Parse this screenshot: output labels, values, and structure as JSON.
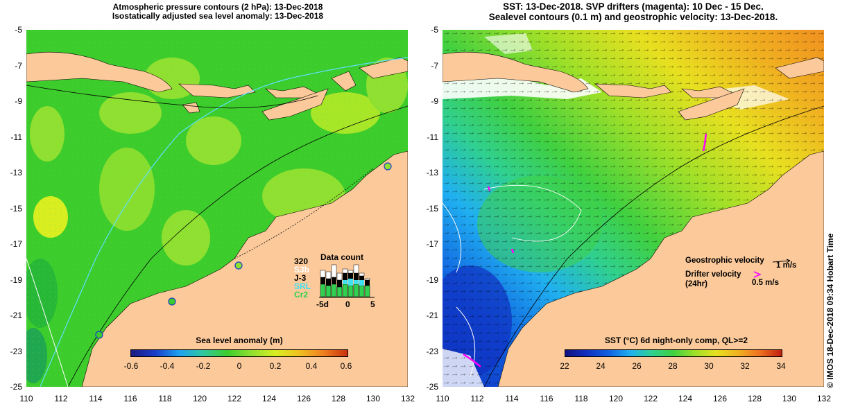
{
  "left_panel": {
    "title_line1": "Atmospheric pressure contours (2 hPa): 13-Dec-2018",
    "title_line2": "Isostatically adjusted sea level anomaly: 13-Dec-2018",
    "colorbar_title": "Sea level anomaly (m)",
    "colorbar_ticks": [
      "-0.6",
      "-0.4",
      "-0.2",
      "0",
      "0.2",
      "0.4",
      "0.6"
    ],
    "data_count": {
      "title": "Data count",
      "max_label": "320",
      "sat_labels": [
        "S3b",
        "J-3",
        "SRL",
        "Cr2"
      ],
      "sat_colors": [
        "#ffffff",
        "#000000",
        "#40e0f0",
        "#30d050"
      ],
      "x_ticks": [
        "-5d",
        "0",
        "5"
      ]
    }
  },
  "right_panel": {
    "title_line1": "SST: 13-Dec-2018. SVP drifters (magenta): 10 Dec - 15 Dec.",
    "title_line2": "Sealevel contours (0.1 m) and geostrophic velocity: 13-Dec-2018.",
    "colorbar_title": "SST (°C) 6d night-only comp, QL>=2",
    "colorbar_ticks": [
      "22",
      "24",
      "26",
      "28",
      "30",
      "32",
      "34"
    ],
    "legend": {
      "geo_label": "Geostrophic velocity",
      "geo_unit": "1 m/s",
      "drifter_label": "Drifter velocity",
      "drifter_sub": "(24hr)",
      "drifter_unit": "0.5 m/s"
    }
  },
  "axes": {
    "y_ticks": [
      "-5",
      "-7",
      "-9",
      "-11",
      "-13",
      "-15",
      "-17",
      "-19",
      "-21",
      "-23",
      "-25"
    ],
    "x_ticks_left": [
      "110",
      "112",
      "114",
      "116",
      "118",
      "120",
      "122",
      "124",
      "126",
      "128",
      "130",
      "132"
    ],
    "x_ticks_right": [
      "110",
      "112",
      "114",
      "116",
      "118",
      "120",
      "122",
      "124",
      "126",
      "128",
      "130",
      "132"
    ]
  },
  "credit": "© IMOS 18-Dec-2018 09:34 Hobart Time",
  "colors": {
    "land": "#fbc99a",
    "ocean_green": "#3ccc2c",
    "ocean_light_green": "#8fe030",
    "ocean_yellow": "#d8ee20",
    "sst_blue": "#1050e0",
    "sst_cyan": "#20b8ff",
    "drifter": "#ff00ff",
    "contour_cyan": "#60e0ff"
  }
}
